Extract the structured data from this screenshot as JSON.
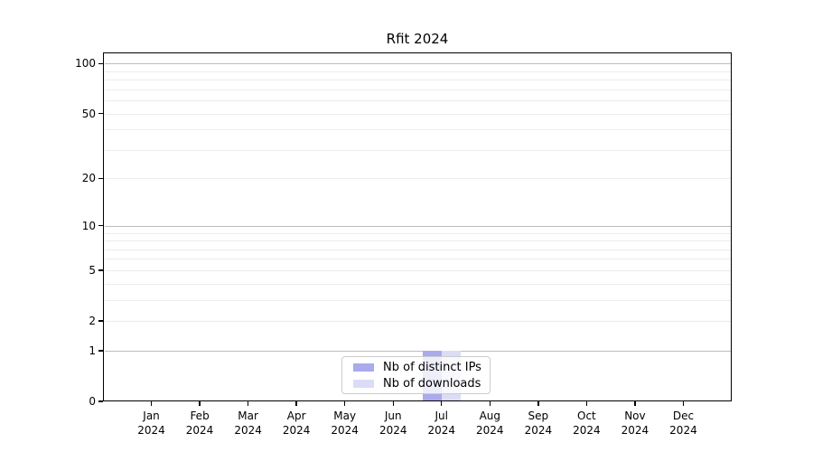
{
  "chart_data": {
    "type": "bar",
    "title": "Rfit 2024",
    "categories": [
      "Jan 2024",
      "Feb 2024",
      "Mar 2024",
      "Apr 2024",
      "May 2024",
      "Jun 2024",
      "Jul 2024",
      "Aug 2024",
      "Sep 2024",
      "Oct 2024",
      "Nov 2024",
      "Dec 2024"
    ],
    "x_tick_month": [
      "Jan",
      "Feb",
      "Mar",
      "Apr",
      "May",
      "Jun",
      "Jul",
      "Aug",
      "Sep",
      "Oct",
      "Nov",
      "Dec"
    ],
    "x_tick_year": "2024",
    "series": [
      {
        "name": "Nb of distinct IPs",
        "color": "#aaaaec",
        "values": [
          0,
          0,
          0,
          0,
          0,
          0,
          1,
          0,
          0,
          0,
          0,
          0
        ]
      },
      {
        "name": "Nb of downloads",
        "color": "#dcdcf6",
        "values": [
          0,
          0,
          0,
          0,
          0,
          0,
          1,
          0,
          0,
          0,
          0,
          0
        ]
      }
    ],
    "y_scale": "log1p",
    "ylim": [
      0,
      115
    ],
    "y_tick_values": [
      0,
      1,
      2,
      5,
      10,
      20,
      50,
      100
    ],
    "y_tick_labels": [
      "0",
      "1",
      "2",
      "5",
      "10",
      "20",
      "50",
      "100"
    ],
    "y_major_gridlines": [
      1,
      10,
      100
    ],
    "y_minor_gridlines": [
      2,
      3,
      4,
      5,
      6,
      7,
      8,
      9,
      20,
      30,
      40,
      50,
      60,
      70,
      80,
      90
    ],
    "grid": true,
    "legend_position": "bottom-center"
  },
  "colors": {
    "background": "#ffffff",
    "spine": "#000000",
    "major_grid": "#bdbdbd",
    "minor_grid": "#ececec",
    "legend_border": "#cccccc"
  }
}
